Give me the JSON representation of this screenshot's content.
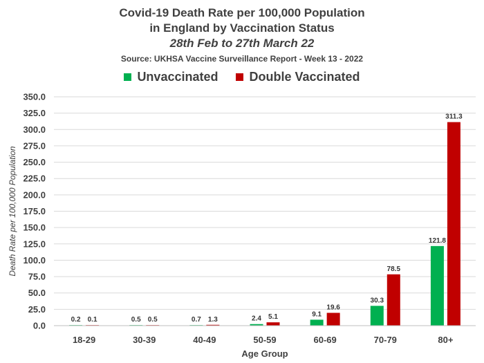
{
  "chart_data": {
    "type": "bar",
    "title_line1": "Covid-19 Death Rate per 100,000 Population",
    "title_line2": "in England by Vaccination Status",
    "subtitle": "28th Feb to 27th March 22",
    "source": "Source: UKHSA Vaccine Surveillance Report - Week 13 - 2022",
    "xlabel": "Age Group",
    "ylabel": "Death Rate per 100,000 Population",
    "categories": [
      "18-29",
      "30-39",
      "40-49",
      "50-59",
      "60-69",
      "70-79",
      "80+"
    ],
    "series": [
      {
        "name": "Unvaccinated",
        "color": "#00b050",
        "values": [
          0.2,
          0.5,
          0.7,
          2.4,
          9.1,
          30.3,
          121.8
        ]
      },
      {
        "name": "Double Vaccinated",
        "color": "#c00000",
        "values": [
          0.1,
          0.5,
          1.3,
          5.1,
          19.6,
          78.5,
          311.3
        ]
      }
    ],
    "ylim": [
      0,
      350
    ],
    "ytick_step": 25,
    "grid": true,
    "legend_position": "top"
  }
}
